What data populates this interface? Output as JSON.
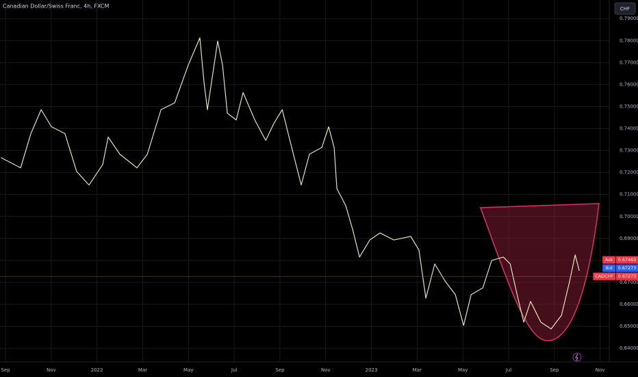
{
  "chart_data": {
    "type": "line",
    "title": "Canadian Dollar/Swiss Franc, 4h, FXCM",
    "currency_button": "CHF",
    "series": [
      {
        "name": "CADCHF",
        "color": "#e6e4b4",
        "x": [
          -0.2,
          0.66,
          1.11,
          1.56,
          2.01,
          2.6,
          3.11,
          3.65,
          4.25,
          4.49,
          5.0,
          5.75,
          6.2,
          6.8,
          7.4,
          7.99,
          8.5,
          8.68,
          8.83,
          9.28,
          9.49,
          9.7,
          10.09,
          10.39,
          10.9,
          11.38,
          11.74,
          12.1,
          12.4,
          12.93,
          13.29,
          13.83,
          14.13,
          14.37,
          14.49,
          14.88,
          15.18,
          15.48,
          15.93,
          16.38,
          16.98,
          17.72,
          18.08,
          18.38,
          18.77,
          19.22,
          19.67,
          20.03,
          20.36,
          20.87,
          21.26,
          21.77,
          22.07,
          22.37,
          22.66,
          22.96,
          23.41,
          23.86,
          24.31,
          24.67,
          24.91,
          25.09
        ],
        "values": [
          0.7268,
          0.7221,
          0.7377,
          0.7486,
          0.7408,
          0.7377,
          0.7205,
          0.7143,
          0.7236,
          0.7361,
          0.7283,
          0.7221,
          0.7283,
          0.7486,
          0.7517,
          0.7689,
          0.7813,
          0.7611,
          0.7486,
          0.7798,
          0.7689,
          0.747,
          0.7439,
          0.7564,
          0.7439,
          0.7346,
          0.7424,
          0.7486,
          0.7361,
          0.7143,
          0.7283,
          0.7314,
          0.7408,
          0.7314,
          0.7127,
          0.7049,
          0.694,
          0.6815,
          0.6893,
          0.6925,
          0.6893,
          0.6909,
          0.6847,
          0.6628,
          0.6784,
          0.6706,
          0.6644,
          0.6504,
          0.6644,
          0.6675,
          0.68,
          0.6815,
          0.6784,
          0.6644,
          0.6519,
          0.6613,
          0.6519,
          0.6488,
          0.655,
          0.6706,
          0.6825,
          0.6753
        ]
      }
    ],
    "xlim": [
      -0.24,
      26.4
    ],
    "xticks": [
      {
        "value": 0,
        "label": "Sep"
      },
      {
        "value": 2,
        "label": "Nov"
      },
      {
        "value": 4,
        "label": "2022"
      },
      {
        "value": 6,
        "label": "Mar"
      },
      {
        "value": 8,
        "label": "May"
      },
      {
        "value": 10,
        "label": "Jul"
      },
      {
        "value": 12,
        "label": "Sep"
      },
      {
        "value": 14,
        "label": "Nov"
      },
      {
        "value": 16,
        "label": "2023"
      },
      {
        "value": 18,
        "label": "Mar"
      },
      {
        "value": 20,
        "label": "May"
      },
      {
        "value": 22,
        "label": "Jul"
      },
      {
        "value": 24,
        "label": "Sep"
      },
      {
        "value": 26,
        "label": "Nov"
      }
    ],
    "ylim": [
      0.6338,
      0.7985
    ],
    "yticks": [
      {
        "value": 0.64,
        "label": "0.64000"
      },
      {
        "value": 0.65,
        "label": "0.65000"
      },
      {
        "value": 0.66,
        "label": "0.66000"
      },
      {
        "value": 0.67,
        "label": "0.67000"
      },
      {
        "value": 0.68,
        "label": "0.68000"
      },
      {
        "value": 0.69,
        "label": "0.69000"
      },
      {
        "value": 0.7,
        "label": "0.70000"
      },
      {
        "value": 0.71,
        "label": "0.71000"
      },
      {
        "value": 0.72,
        "label": "0.72000"
      },
      {
        "value": 0.73,
        "label": "0.73000"
      },
      {
        "value": 0.74,
        "label": "0.74000"
      },
      {
        "value": 0.75,
        "label": "0.75000"
      },
      {
        "value": 0.76,
        "label": "0.76000"
      },
      {
        "value": 0.77,
        "label": "0.77000"
      },
      {
        "value": 0.78,
        "label": "0.78000"
      },
      {
        "value": 0.79,
        "label": "0.79000"
      }
    ],
    "grid": true,
    "price_labels": [
      {
        "name": "Ask",
        "value": 0.67463,
        "label": "0.67463",
        "color": "#f23645"
      },
      {
        "name": "Bid",
        "value": 0.67273,
        "label": "0.67273",
        "color": "#2962ff"
      },
      {
        "name": "CADCHF",
        "value": 0.67273,
        "label": "0.67273",
        "color": "#f23645"
      }
    ]
  }
}
